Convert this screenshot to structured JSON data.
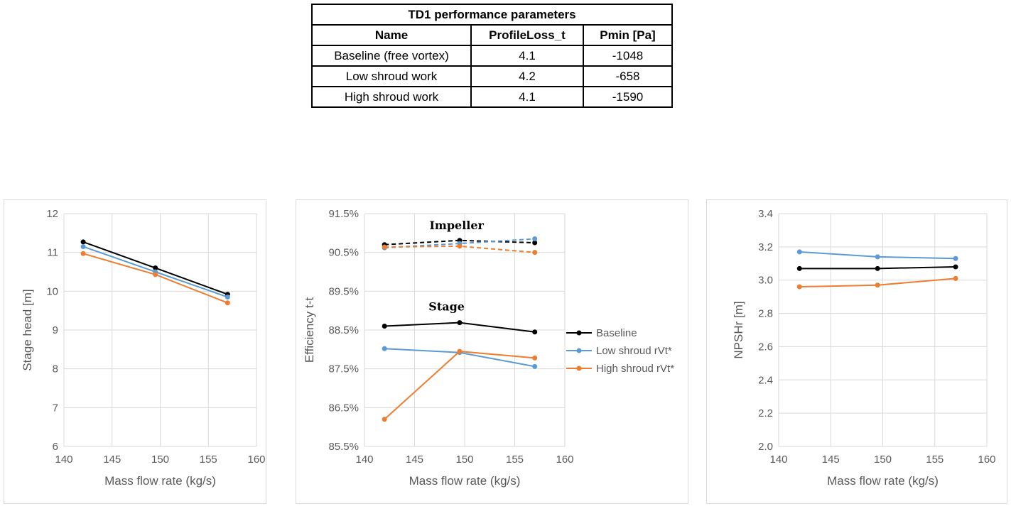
{
  "table": {
    "title": "TD1 performance parameters",
    "headers": [
      "Name",
      "ProfileLoss_t",
      "Pmin [Pa]"
    ],
    "rows": [
      [
        "Baseline (free vortex)",
        "4.1",
        "-1048"
      ],
      [
        "Low shroud work",
        "4.2",
        "-658"
      ],
      [
        "High shroud work",
        "4.1",
        "-1590"
      ]
    ]
  },
  "colors": {
    "baseline": "#000000",
    "low": "#5b9bd5",
    "high": "#ed7d31",
    "grid": "#d9d9d9",
    "text": "#595959"
  },
  "chart_data": [
    {
      "type": "line",
      "title": "",
      "xlabel": "Mass flow rate (kg/s)",
      "ylabel": "Stage head [m]",
      "xlim": [
        140,
        160
      ],
      "ylim": [
        6,
        12
      ],
      "xticks": [
        "140",
        "145",
        "150",
        "155",
        "160"
      ],
      "yticks": [
        "6",
        "7",
        "8",
        "9",
        "10",
        "11",
        "12"
      ],
      "x": [
        142,
        149.5,
        157
      ],
      "series": [
        {
          "name": "Baseline",
          "color": "#000000",
          "values": [
            11.27,
            10.6,
            9.92
          ]
        },
        {
          "name": "Low shroud rVt*",
          "color": "#5b9bd5",
          "values": [
            11.15,
            10.5,
            9.85
          ]
        },
        {
          "name": "High shroud rVt*",
          "color": "#ed7d31",
          "values": [
            10.97,
            10.43,
            9.7
          ]
        }
      ]
    },
    {
      "type": "line",
      "title": "",
      "xlabel": "Mass flow rate (kg/s)",
      "ylabel": "Efficiency t-t",
      "xlim": [
        140,
        160
      ],
      "ylim": [
        85.5,
        91.5
      ],
      "xticks": [
        "140",
        "145",
        "150",
        "155",
        "160"
      ],
      "yticks": [
        "85.5%",
        "86.5%",
        "87.5%",
        "88.5%",
        "89.5%",
        "90.5%",
        "91.5%"
      ],
      "x": [
        142,
        149.5,
        157
      ],
      "annotations": [
        "Impeller",
        "Stage"
      ],
      "legend": [
        "Baseline",
        "Low shroud rVt*",
        "High shroud rVt*"
      ],
      "series": [
        {
          "name": "Baseline (Impeller)",
          "color": "#000000",
          "dashed": true,
          "values": [
            90.7,
            90.81,
            90.75
          ]
        },
        {
          "name": "Low shroud rVt* (Impeller)",
          "color": "#5b9bd5",
          "dashed": true,
          "values": [
            90.62,
            90.73,
            90.85
          ]
        },
        {
          "name": "High shroud rVt* (Impeller)",
          "color": "#ed7d31",
          "dashed": true,
          "values": [
            90.64,
            90.66,
            90.5
          ]
        },
        {
          "name": "Baseline (Stage)",
          "color": "#000000",
          "dashed": false,
          "values": [
            88.6,
            88.69,
            88.45
          ]
        },
        {
          "name": "Low shroud rVt* (Stage)",
          "color": "#5b9bd5",
          "dashed": false,
          "values": [
            88.02,
            87.92,
            87.56
          ]
        },
        {
          "name": "High shroud rVt* (Stage)",
          "color": "#ed7d31",
          "dashed": false,
          "values": [
            86.2,
            87.95,
            87.78
          ]
        }
      ]
    },
    {
      "type": "line",
      "title": "",
      "xlabel": "Mass flow rate (kg/s)",
      "ylabel": "NPSHr [m]",
      "xlim": [
        140,
        160
      ],
      "ylim": [
        2.0,
        3.4
      ],
      "xticks": [
        "140",
        "145",
        "150",
        "155",
        "160"
      ],
      "yticks": [
        "2.0",
        "2.2",
        "2.4",
        "2.6",
        "2.8",
        "3.0",
        "3.2",
        "3.4"
      ],
      "x": [
        142,
        149.5,
        157
      ],
      "series": [
        {
          "name": "Baseline",
          "color": "#000000",
          "values": [
            3.07,
            3.07,
            3.08
          ]
        },
        {
          "name": "Low shroud rVt*",
          "color": "#5b9bd5",
          "values": [
            3.17,
            3.14,
            3.13
          ]
        },
        {
          "name": "High shroud rVt*",
          "color": "#ed7d31",
          "values": [
            2.96,
            2.97,
            3.01
          ]
        }
      ]
    }
  ]
}
